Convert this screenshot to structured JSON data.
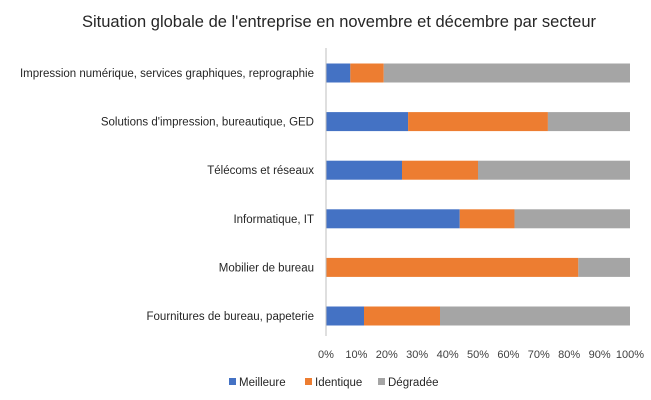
{
  "chart_data": {
    "type": "bar",
    "orientation": "horizontal",
    "stacked": "percent",
    "title": "Situation globale de l'entreprise en novembre et décembre par secteur",
    "categories": [
      "Impression numérique, services graphiques, reprographie",
      "Solutions d'impression, bureautique, GED",
      "Télécoms et réseaux",
      "Informatique, IT",
      "Mobilier de bureau",
      "Fournitures de bureau, papeterie"
    ],
    "series": [
      {
        "name": "Meilleure",
        "color": "#4472C4",
        "values": [
          8,
          27,
          25,
          44,
          0,
          12.5
        ]
      },
      {
        "name": "Identique",
        "color": "#ED7D31",
        "values": [
          11,
          46,
          25,
          18,
          83,
          25
        ]
      },
      {
        "name": "Dégradée",
        "color": "#A5A5A5",
        "values": [
          81,
          27,
          50,
          38,
          17,
          62.5
        ]
      }
    ],
    "xlim": [
      0,
      100
    ],
    "x_ticks": [
      "0%",
      "10%",
      "20%",
      "30%",
      "40%",
      "50%",
      "60%",
      "70%",
      "80%",
      "90%",
      "100%"
    ],
    "grid": false,
    "legend": "bottom"
  }
}
